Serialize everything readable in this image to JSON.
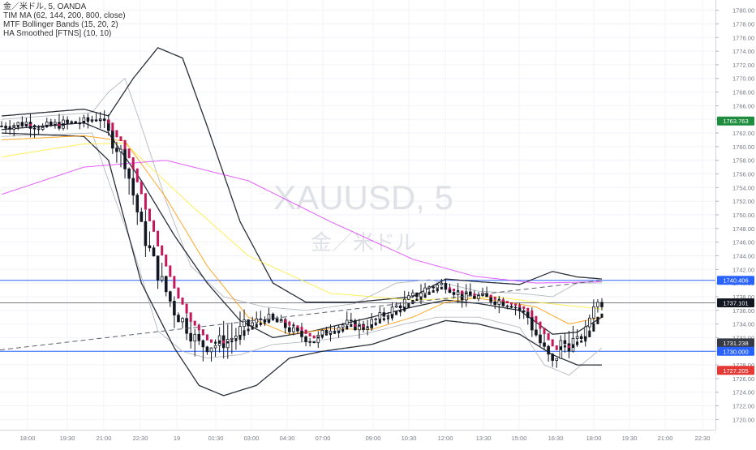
{
  "legend": {
    "symbol_line": "金／米ドル, 5, OANDA",
    "indicator1": "TIM MA (62, 144, 200, 800, close)",
    "indicator2": "MTF Bollinger Bands (15, 20, 2)",
    "indicator3": "HA Smoothed [FTNS] (10, 10)"
  },
  "watermark": {
    "ticker": "XAUUSD, 5",
    "name": "金／米ドル"
  },
  "chart_data": {
    "type": "candlestick",
    "title": "XAUUSD, 5",
    "ylim": [
      1718.5,
      1781.5
    ],
    "y_ticks": [
      1720,
      1722,
      1724,
      1726,
      1728,
      1730,
      1732,
      1734,
      1736,
      1738,
      1740,
      1742,
      1744,
      1746,
      1748,
      1750,
      1752,
      1754,
      1756,
      1758,
      1760,
      1762,
      1764,
      1766,
      1768,
      1770,
      1772,
      1774,
      1776,
      1778,
      1780
    ],
    "x_tick_labels": [
      "18:00",
      "19:30",
      "21:00",
      "22:30",
      "19",
      "01:30",
      "03:00",
      "04:30",
      "07:00",
      "09:00",
      "10:30",
      "12:00",
      "13:30",
      "15:00",
      "16:30",
      "18:00",
      "19:30",
      "21:00",
      "22:30"
    ],
    "price_labels": [
      {
        "value": 1763.763,
        "text": "1763.763",
        "color": "#1e8e3e"
      },
      {
        "value": 1740.406,
        "text": "1740.406",
        "color": "#2962ff"
      },
      {
        "value": 1737.101,
        "text": "1737.101",
        "color": "#131722"
      },
      {
        "value": 1731.238,
        "text": "1731.238",
        "color": "#363a45"
      },
      {
        "value": 1730.0,
        "text": "1730.000",
        "color": "#2962ff"
      },
      {
        "value": 1727.205,
        "text": "1727.205",
        "color": "#e53935"
      }
    ],
    "horizontal_lines": [
      {
        "value": 1740.406,
        "color": "#2962ff"
      },
      {
        "value": 1737.101,
        "color": "#787b86"
      },
      {
        "value": 1730.0,
        "color": "#2962ff"
      }
    ],
    "trend_line": {
      "from": [
        0,
        1730.2
      ],
      "to": [
        146,
        1740.4
      ]
    },
    "ma_series": [
      {
        "color": "#ff9800",
        "points": [
          [
            0,
            1761.0
          ],
          [
            20,
            1761.6
          ],
          [
            30,
            1760.8
          ],
          [
            40,
            1752.5
          ],
          [
            50,
            1742.5
          ],
          [
            60,
            1735.0
          ],
          [
            70,
            1732.5
          ],
          [
            80,
            1733.3
          ],
          [
            90,
            1733.2
          ],
          [
            100,
            1735.0
          ],
          [
            108,
            1737.2
          ],
          [
            115,
            1737.8
          ],
          [
            122,
            1737.3
          ],
          [
            130,
            1736.5
          ],
          [
            138,
            1734.0
          ],
          [
            146,
            1735.0
          ]
        ]
      },
      {
        "color": "#ffeb3b",
        "points": [
          [
            0,
            1758.5
          ],
          [
            20,
            1760.4
          ],
          [
            30,
            1760.5
          ],
          [
            45,
            1752.0
          ],
          [
            60,
            1744.0
          ],
          [
            80,
            1738.5
          ],
          [
            100,
            1737.5
          ],
          [
            120,
            1738.0
          ],
          [
            130,
            1737.2
          ],
          [
            146,
            1736.2
          ]
        ]
      },
      {
        "color": "#e040fb",
        "points": [
          [
            0,
            1753.0
          ],
          [
            20,
            1757.0
          ],
          [
            40,
            1758.0
          ],
          [
            60,
            1755.0
          ],
          [
            80,
            1749.0
          ],
          [
            100,
            1743.5
          ],
          [
            115,
            1741.0
          ],
          [
            130,
            1740.0
          ],
          [
            146,
            1740.2
          ]
        ]
      }
    ],
    "bollinger_dark": {
      "upper": [
        [
          0,
          1764.5
        ],
        [
          20,
          1765.5
        ],
        [
          26,
          1764.5
        ],
        [
          32,
          1770.0
        ],
        [
          38,
          1774.5
        ],
        [
          44,
          1773.0
        ],
        [
          50,
          1763.0
        ],
        [
          58,
          1749.0
        ],
        [
          66,
          1740.0
        ],
        [
          74,
          1737.2
        ],
        [
          86,
          1737.2
        ],
        [
          100,
          1738.0
        ],
        [
          108,
          1740.6
        ],
        [
          116,
          1740.2
        ],
        [
          126,
          1739.8
        ],
        [
          134,
          1741.7
        ],
        [
          140,
          1740.9
        ],
        [
          146,
          1740.6
        ]
      ],
      "lower": [
        [
          0,
          1762.0
        ],
        [
          20,
          1761.5
        ],
        [
          26,
          1758.0
        ],
        [
          34,
          1740.0
        ],
        [
          42,
          1730.5
        ],
        [
          48,
          1725.0
        ],
        [
          54,
          1723.5
        ],
        [
          62,
          1725.0
        ],
        [
          70,
          1729.0
        ],
        [
          78,
          1730.0
        ],
        [
          90,
          1731.0
        ],
        [
          100,
          1733.0
        ],
        [
          108,
          1734.5
        ],
        [
          116,
          1734.0
        ],
        [
          126,
          1732.5
        ],
        [
          134,
          1729.5
        ],
        [
          140,
          1728.0
        ],
        [
          146,
          1728.0
        ]
      ],
      "basis": [
        [
          0,
          1762.5
        ],
        [
          20,
          1763.5
        ],
        [
          26,
          1762.0
        ],
        [
          34,
          1755.0
        ],
        [
          42,
          1747.0
        ],
        [
          50,
          1740.0
        ],
        [
          58,
          1734.5
        ],
        [
          66,
          1732.0
        ],
        [
          76,
          1733.0
        ],
        [
          90,
          1735.0
        ],
        [
          100,
          1736.5
        ],
        [
          108,
          1737.5
        ],
        [
          116,
          1737.0
        ],
        [
          126,
          1736.0
        ],
        [
          134,
          1732.5
        ],
        [
          140,
          1732.8
        ],
        [
          146,
          1735.0
        ]
      ]
    },
    "bollinger_light": {
      "upper": [
        [
          0,
          1764.0
        ],
        [
          22,
          1765.0
        ],
        [
          26,
          1768.0
        ],
        [
          30,
          1770.0
        ],
        [
          34,
          1763.0
        ],
        [
          40,
          1752.0
        ],
        [
          46,
          1742.5
        ],
        [
          54,
          1738.0
        ],
        [
          64,
          1736.5
        ],
        [
          74,
          1736.0
        ],
        [
          86,
          1737.0
        ],
        [
          96,
          1740.0
        ],
        [
          104,
          1740.5
        ],
        [
          116,
          1738.8
        ],
        [
          126,
          1738.5
        ],
        [
          134,
          1738.0
        ],
        [
          140,
          1740.0
        ],
        [
          146,
          1740.0
        ]
      ],
      "lower": [
        [
          0,
          1761.5
        ],
        [
          22,
          1762.0
        ],
        [
          26,
          1755.0
        ],
        [
          32,
          1745.0
        ],
        [
          38,
          1733.0
        ],
        [
          44,
          1730.0
        ],
        [
          50,
          1729.0
        ],
        [
          58,
          1729.5
        ],
        [
          66,
          1731.0
        ],
        [
          76,
          1731.5
        ],
        [
          88,
          1732.5
        ],
        [
          98,
          1734.0
        ],
        [
          106,
          1735.0
        ],
        [
          116,
          1735.0
        ],
        [
          126,
          1733.5
        ],
        [
          132,
          1728.0
        ],
        [
          138,
          1726.5
        ],
        [
          146,
          1730.5
        ]
      ]
    },
    "candle_anchors": [
      [
        0,
        1763.0
      ],
      [
        6,
        1763.5
      ],
      [
        10,
        1762.8
      ],
      [
        14,
        1763.3
      ],
      [
        20,
        1763.6
      ],
      [
        24,
        1764.4
      ],
      [
        26,
        1762.0
      ],
      [
        30,
        1758.0
      ],
      [
        34,
        1748.0
      ],
      [
        38,
        1741.5
      ],
      [
        42,
        1736.0
      ],
      [
        44,
        1734.5
      ],
      [
        48,
        1731.0
      ],
      [
        52,
        1731.0
      ],
      [
        56,
        1732.0
      ],
      [
        60,
        1733.8
      ],
      [
        64,
        1735.0
      ],
      [
        68,
        1734.0
      ],
      [
        72,
        1732.5
      ],
      [
        76,
        1731.5
      ],
      [
        80,
        1733.5
      ],
      [
        84,
        1734.0
      ],
      [
        88,
        1733.5
      ],
      [
        92,
        1735.0
      ],
      [
        96,
        1736.5
      ],
      [
        100,
        1738.0
      ],
      [
        104,
        1739.5
      ],
      [
        108,
        1739.8
      ],
      [
        112,
        1738.0
      ],
      [
        116,
        1738.0
      ],
      [
        120,
        1737.5
      ],
      [
        124,
        1737.0
      ],
      [
        128,
        1735.0
      ],
      [
        132,
        1730.0
      ],
      [
        134,
        1728.0
      ],
      [
        136,
        1731.0
      ],
      [
        140,
        1731.5
      ],
      [
        142,
        1733.0
      ],
      [
        144,
        1737.0
      ],
      [
        146,
        1737.1
      ]
    ],
    "bar_count": 147
  },
  "colors": {
    "grid": "#f0f3fa",
    "axis_text": "#787b86",
    "candle": "#131722",
    "ha_up": "#131722",
    "ha_down": "#c2185b"
  }
}
